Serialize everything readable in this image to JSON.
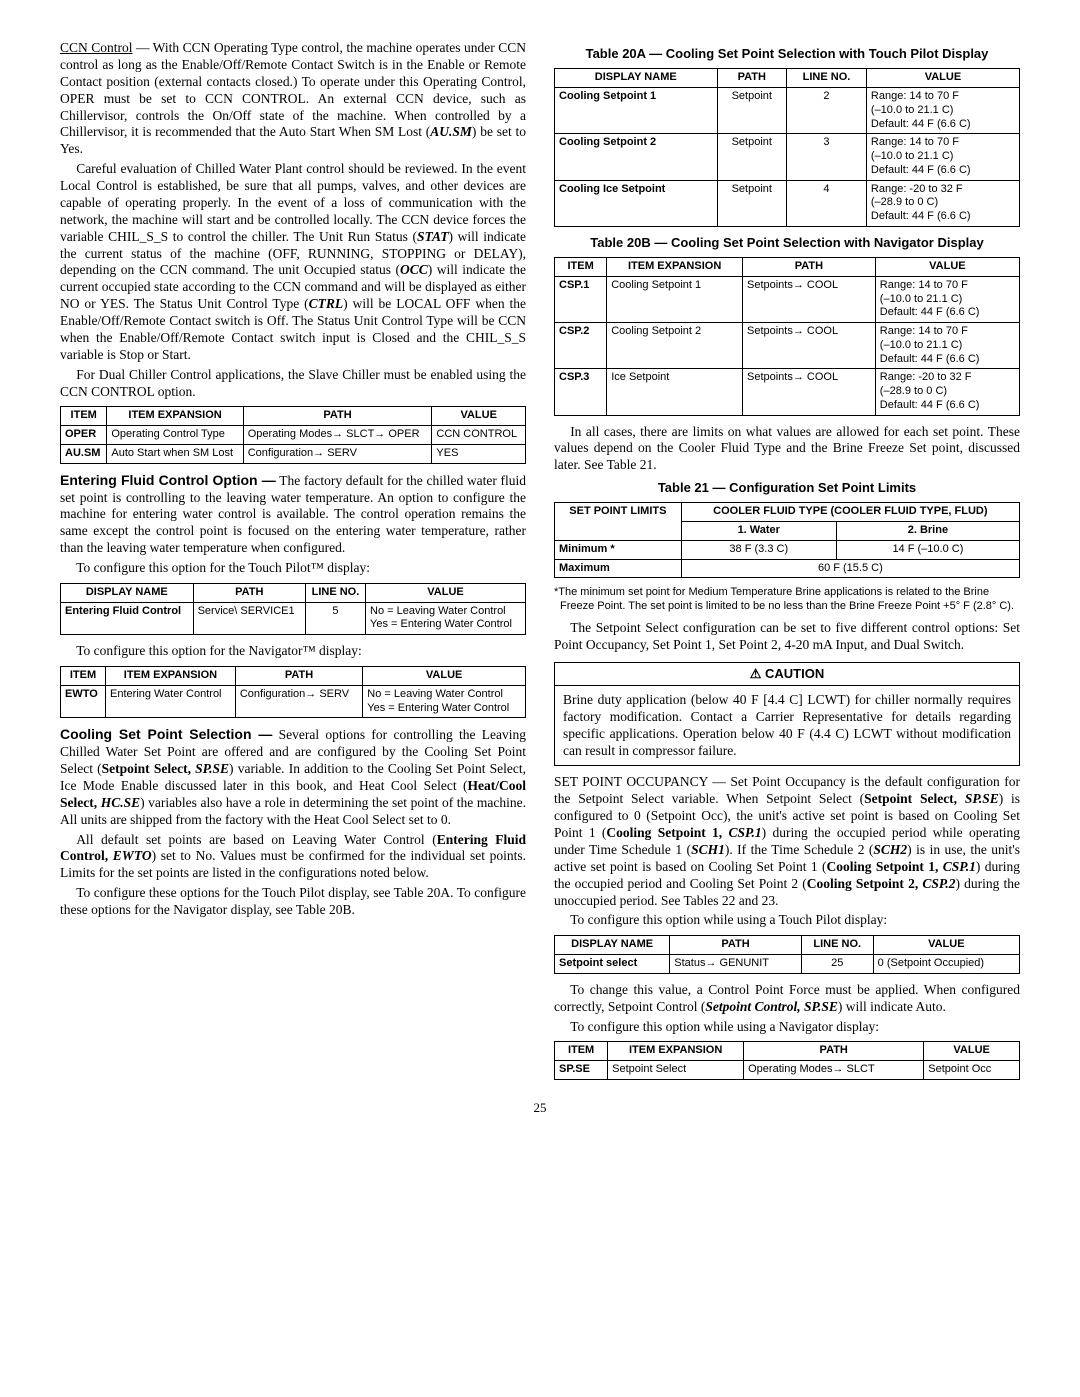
{
  "pageNumber": "25",
  "left": {
    "p1_lead_u": "CCN Control",
    "p1": " — With CCN Operating Type control, the machine operates under CCN control as long as the Enable/Off/Remote Contact Switch is in the Enable or Remote Contact position (external contacts closed.) To operate under this Operating Control, OPER must be set to CCN CONTROL. An external CCN device, such as Chillervisor, controls the On/Off state of the machine. When controlled by a Chillervisor, it is recommended that the Auto Start When SM Lost (",
    "p1_bi": "AU.SM",
    "p1_tail": ") be set to Yes.",
    "p2a": "Careful evaluation of Chilled Water Plant control should be reviewed. In the event Local Control is established, be sure that all pumps, valves, and other devices are capable of operating properly. In the event of a loss of communication with the network, the machine will start and be controlled locally. The CCN device forces the variable CHIL_S_S to control the chiller. The Unit Run Status (",
    "p2_bi1": "STAT",
    "p2b": ") will indicate the current status of the machine (OFF, RUNNING, STOPPING or DELAY), depending on the CCN command. The unit Occupied status (",
    "p2_bi2": "OCC",
    "p2c": ") will indicate the current occupied state according to the CCN command and will be displayed as either NO or YES. The Status Unit Control Type (",
    "p2_bi3": "CTRL",
    "p2d": ") will be LOCAL OFF when the Enable/Off/Remote Contact switch is Off. The Status Unit Control Type will be CCN when the Enable/Off/Remote Contact switch input is Closed and the CHIL_S_S variable is Stop or Start.",
    "p3": "For Dual Chiller Control applications, the Slave Chiller must be enabled using the CCN CONTROL option.",
    "t1": {
      "h": [
        "ITEM",
        "ITEM EXPANSION",
        "PATH",
        "VALUE"
      ],
      "r1": [
        "OPER",
        "Operating Control Type",
        "Operating Modes→ SLCT→ OPER",
        "CCN CONTROL"
      ],
      "r2": [
        "AU.SM",
        "Auto Start when SM Lost",
        "Configuration→ SERV",
        "YES"
      ]
    },
    "efc_lead": "Entering Fluid Control Option —",
    "efc_body": " The factory default for the chilled water fluid set point is controlling to the leaving water temperature. An option to configure the machine for entering water control is available. The control operation remains the same except the control point is focused on the entering water temperature, rather than the leaving water temperature when configured.",
    "efc_cfg1": "To configure this option for the Touch Pilot™ display:",
    "t2": {
      "h": [
        "DISPLAY NAME",
        "PATH",
        "LINE NO.",
        "VALUE"
      ],
      "r1": [
        "Entering Fluid Control",
        "Service\\ SERVICE1",
        "5",
        "No = Leaving Water Control\nYes = Entering Water Control"
      ]
    },
    "efc_cfg2": "To configure this option for the Navigator™ display:",
    "t3": {
      "h": [
        "ITEM",
        "ITEM EXPANSION",
        "PATH",
        "VALUE"
      ],
      "r1": [
        "EWTO",
        "Entering Water Control",
        "Configuration→ SERV",
        "No = Leaving Water Control\nYes = Entering Water Control"
      ]
    },
    "csps_lead": "Cooling Set Point Selection —",
    "csps_a": " Several options for controlling the Leaving Chilled Water Set Point are offered and are configured by the Cooling Set Point Select (",
    "csps_b1": "Setpoint Select,",
    "csps_bi1": " SP.SE",
    "csps_b": ") variable. In addition to the Cooling Set Point Select, Ice Mode Enable discussed later in this book, and Heat Cool Select (",
    "csps_b2": "Heat/Cool Select,",
    "csps_bi2": " HC.SE",
    "csps_c": ") variables also have a role in determining the set point of the machine. All units are shipped from the factory with the Heat Cool Select set to 0.",
    "csps_p2a": "All default set points are based on Leaving Water Control (",
    "csps_p2b1": "Entering Fluid Control,",
    "csps_p2bi": " EWTO",
    "csps_p2b": ") set to No. Values must be confirmed for the individual set points. Limits for the set points are listed in the configurations noted below.",
    "csps_p3": "To configure these options for the Touch Pilot display, see Table 20A. To configure these options for the Navigator display, see Table 20B."
  },
  "right": {
    "t20a_title": "Table 20A — Cooling Set Point Selection with Touch Pilot Display",
    "t20a": {
      "h": [
        "DISPLAY NAME",
        "PATH",
        "LINE NO.",
        "VALUE"
      ],
      "r1": [
        "Cooling Setpoint 1",
        "Setpoint",
        "2",
        "Range: 14 to 70 F\n(–10.0 to 21.1 C)\nDefault: 44 F (6.6 C)"
      ],
      "r2": [
        "Cooling Setpoint 2",
        "Setpoint",
        "3",
        "Range: 14 to 70 F\n(–10.0 to 21.1 C)\nDefault: 44 F (6.6 C)"
      ],
      "r3": [
        "Cooling Ice Setpoint",
        "Setpoint",
        "4",
        "Range: -20 to 32 F\n(–28.9 to 0 C)\nDefault: 44 F (6.6 C)"
      ]
    },
    "t20b_title": "Table 20B — Cooling Set Point Selection with Navigator Display",
    "t20b": {
      "h": [
        "ITEM",
        "ITEM EXPANSION",
        "PATH",
        "VALUE"
      ],
      "r1": [
        "CSP.1",
        "Cooling Setpoint 1",
        "Setpoints→ COOL",
        "Range: 14 to 70 F\n(–10.0 to 21.1 C)\nDefault: 44 F (6.6 C)"
      ],
      "r2": [
        "CSP.2",
        "Cooling Setpoint 2",
        "Setpoints→ COOL",
        "Range: 14 to 70 F\n(–10.0 to 21.1 C)\nDefault: 44 F (6.6 C)"
      ],
      "r3": [
        "CSP.3",
        "Ice Setpoint",
        "Setpoints→ COOL",
        "Range: -20 to 32 F\n(–28.9 to 0 C)\nDefault: 44 F (6.6 C)"
      ]
    },
    "p_after20b": "In all cases, there are limits on what values are allowed for each set point. These values depend on the Cooler Fluid Type and the Brine Freeze Set point, discussed later. See Table 21.",
    "t21_title": "Table 21 — Configuration Set Point Limits",
    "t21": {
      "h_spl": "SET POINT LIMITS",
      "h_cft": "COOLER FLUID TYPE (COOLER FLUID TYPE, FLUD)",
      "h_water": "1. Water",
      "h_brine": "2. Brine",
      "min_lbl": "Minimum *",
      "min_water": "38 F (3.3 C)",
      "min_brine": "14 F (–10.0 C)",
      "max_lbl": "Maximum",
      "max_val": "60 F (15.5 C)"
    },
    "t21_foot": "*The minimum set point for Medium Temperature Brine applications is related to the Brine Freeze Point. The set point is limited to be no less than the Brine Freeze Point +5° F (2.8° C).",
    "p_sps": "The Setpoint Select configuration can be set to five different control options: Set Point Occupancy, Set Point 1, Set Point 2, 4-20 mA Input, and Dual Switch.",
    "caution_head": "⚠ CAUTION",
    "caution_body": "Brine duty application (below 40 F [4.4 C] LCWT) for chiller normally requires factory modification. Contact a Carrier Representative for details regarding specific applications. Operation below 40 F (4.4 C) LCWT without modification can result in compressor failure.",
    "spo_a": "SET POINT OCCUPANCY — Set Point Occupancy is the default configuration for the Setpoint Select variable. When Setpoint Select (",
    "spo_b1": "Setpoint Select,",
    "spo_bi1": " SP.SE",
    "spo_b": ") is configured to 0 (Setpoint Occ), the unit's active set point is based on Cooling Set Point 1 (",
    "spo_b2": "Cooling Setpoint 1,",
    "spo_bi2": " CSP.1",
    "spo_c": ") during the occupied period while operating under Time Schedule 1 (",
    "spo_bi3": "SCH1",
    "spo_d": "). If the Time Schedule 2 (",
    "spo_bi4": "SCH2",
    "spo_e": ") is in use, the unit's active set point is based on Cooling Set Point 1 (",
    "spo_b3": "Cooling Setpoint 1,",
    "spo_bi5": " CSP.1",
    "spo_f": ") during the occupied period and Cooling Set Point 2 (",
    "spo_b4": "Cooling Setpoint 2,",
    "spo_bi6": " CSP.2",
    "spo_g": ") during the unoccupied period. See Tables 22 and 23.",
    "spo_cfg1": "To configure this option while using a Touch Pilot display:",
    "t22": {
      "h": [
        "DISPLAY NAME",
        "PATH",
        "LINE NO.",
        "VALUE"
      ],
      "r1": [
        "Setpoint select",
        "Status→ GENUNIT",
        "25",
        "0 (Setpoint Occupied)"
      ]
    },
    "spo_p2a": "To change this value, a Control Point Force must be applied. When configured correctly, Setpoint Control (",
    "spo_p2bi": "Setpoint Control, SP.SE",
    "spo_p2b": ") will indicate Auto.",
    "spo_cfg2": "To configure this option while using a Navigator display:",
    "t23": {
      "h": [
        "ITEM",
        "ITEM EXPANSION",
        "PATH",
        "VALUE"
      ],
      "r1": [
        "SP.SE",
        "Setpoint Select",
        "Operating Modes→ SLCT",
        "Setpoint Occ"
      ]
    }
  }
}
